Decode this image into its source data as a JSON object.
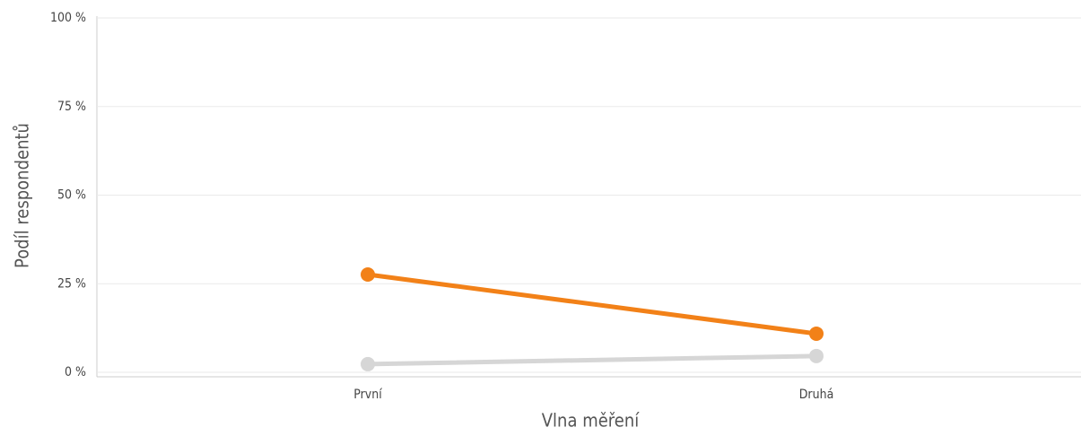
{
  "chart_data": {
    "type": "line",
    "x_label": "Vlna měření",
    "y_label": "Podíl respondentů",
    "categories": [
      "První",
      "Druhá"
    ],
    "series": [
      {
        "color": "#f28118",
        "values": [
          27.6,
          10.9
        ]
      },
      {
        "color": "#d6d6d6",
        "values": [
          2.3,
          4.6
        ]
      }
    ],
    "ylim": [
      0,
      100
    ],
    "yticks": [
      {
        "value": 0,
        "label": "0 %"
      },
      {
        "value": 25,
        "label": "25 %"
      },
      {
        "value": 50,
        "label": "50 %"
      },
      {
        "value": 75,
        "label": "75 %"
      },
      {
        "value": 100,
        "label": "100 %"
      }
    ],
    "grid": true
  }
}
